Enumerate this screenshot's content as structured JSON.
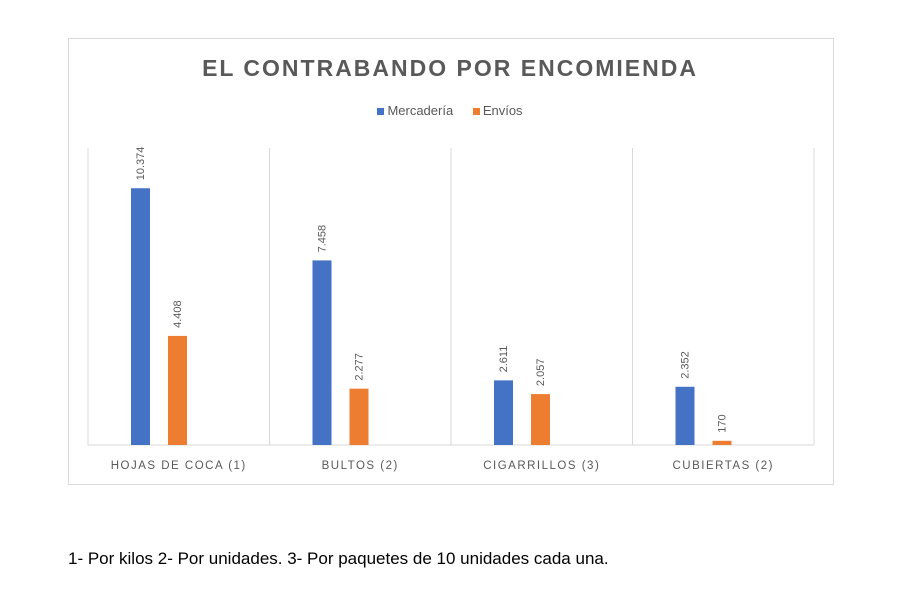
{
  "chart_data": {
    "type": "bar",
    "title": "EL CONTRABANDO POR ENCOMIENDA",
    "categories": [
      "HOJAS DE COCA (1)",
      "BULTOS (2)",
      "CIGARRILLOS (3)",
      "CUBIERTAS (2)"
    ],
    "series": [
      {
        "name": "Mercadería",
        "color": "#4472c4",
        "values": [
          10374,
          7458,
          2611,
          2352
        ],
        "labels": [
          "10.374",
          "7.458",
          "2.611",
          "2.352"
        ]
      },
      {
        "name": "Envíos",
        "color": "#ed7d31",
        "values": [
          4408,
          2277,
          2057,
          170
        ],
        "labels": [
          "4.408",
          "2.277",
          "2.057",
          "170"
        ]
      }
    ],
    "ylim": [
      0,
      12000
    ],
    "grid": "vertical category separators",
    "legend_position": "top"
  },
  "note": "1- Por kilos 2- Por unidades. 3- Por paquetes de 10 unidades cada una."
}
